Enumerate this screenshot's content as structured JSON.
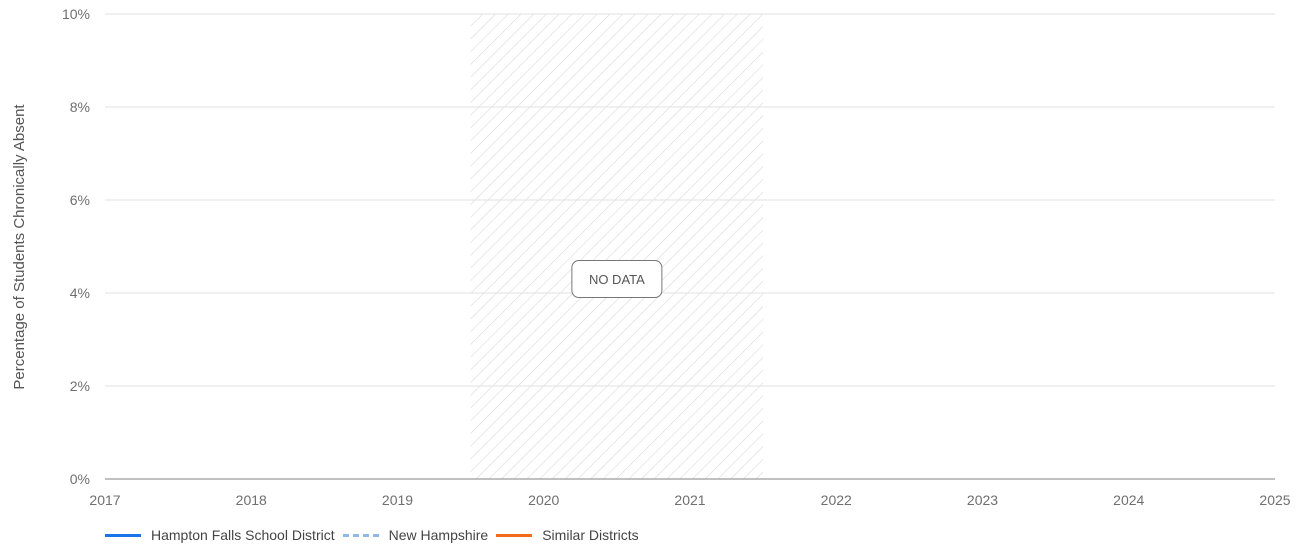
{
  "chart_data": {
    "type": "line",
    "ylabel": "Percentage of Students Chronically Absent",
    "xlabel": "",
    "x_ticks": [
      "2017",
      "2018",
      "2019",
      "2020",
      "2021",
      "2022",
      "2023",
      "2024",
      "2025"
    ],
    "xlim": [
      2017,
      2025
    ],
    "y_ticks": [
      "0%",
      "2%",
      "4%",
      "6%",
      "8%",
      "10%"
    ],
    "ylim": [
      0,
      10
    ],
    "grid": true,
    "no_data_region": {
      "x_start": 2019.5,
      "x_end": 2021.5,
      "label": "NO DATA"
    },
    "series": [
      {
        "name": "Hampton Falls School District",
        "color": "#1a73e8",
        "style": "solid",
        "values": []
      },
      {
        "name": "New Hampshire",
        "color": "#8fb8e6",
        "style": "dashed",
        "values": []
      },
      {
        "name": "Similar Districts",
        "color": "#f26b1d",
        "style": "solid",
        "values": []
      }
    ],
    "legend_position": "bottom-left"
  }
}
